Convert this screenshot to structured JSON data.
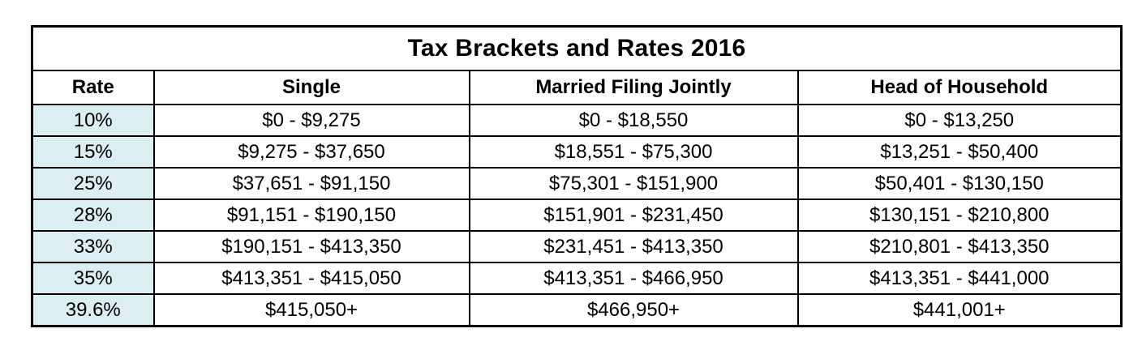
{
  "chart_data": {
    "type": "table",
    "title": "Tax Brackets and Rates 2016",
    "columns": [
      "Rate",
      "Single",
      "Married Filing Jointly",
      "Head of Household"
    ],
    "rows": [
      [
        "10%",
        "$0 - $9,275",
        "$0 - $18,550",
        "$0 - $13,250"
      ],
      [
        "15%",
        "$9,275 - $37,650",
        "$18,551 - $75,300",
        "$13,251 - $50,400"
      ],
      [
        "25%",
        "$37,651 - $91,150",
        "$75,301 - $151,900",
        "$50,401 - $130,150"
      ],
      [
        "28%",
        "$91,151 - $190,150",
        "$151,901 - $231,450",
        "$130,151  - $210,800"
      ],
      [
        "33%",
        "$190,151 - $413,350",
        "$231,451 - $413,350",
        "$210,801 - $413,350"
      ],
      [
        "35%",
        "$413,351 - $415,050",
        "$413,351 - $466,950",
        "$413,351 - $441,000"
      ],
      [
        "39.6%",
        "$415,050+",
        "$466,950+",
        "$441,001+"
      ]
    ]
  },
  "colors": {
    "rate_column_bg": "#daeef3",
    "border": "#000000",
    "background": "#ffffff",
    "text": "#000000"
  }
}
